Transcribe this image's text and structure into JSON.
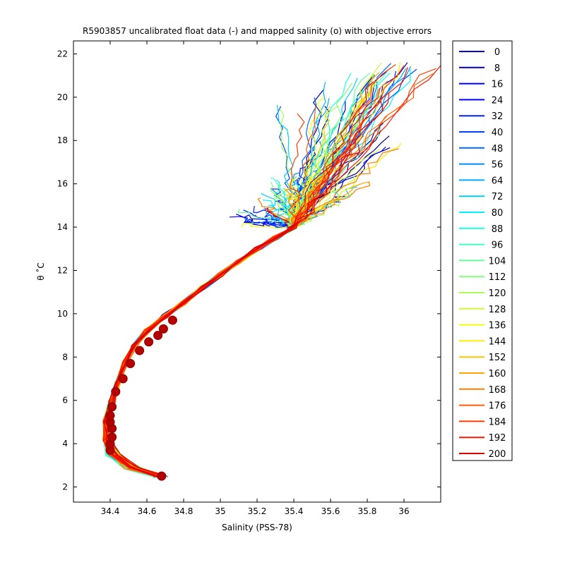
{
  "chart_data": {
    "type": "line",
    "title": "R5903857 uncalibrated float data (-) and mapped salinity (o) with objective errors",
    "xlabel": "Salinity (PSS-78)",
    "ylabel": "θ ˚C",
    "xlim": [
      34.2,
      36.2
    ],
    "ylim": [
      1.3,
      22.6
    ],
    "xticks": [
      34.4,
      34.6,
      34.8,
      35,
      35.2,
      35.4,
      35.6,
      35.8,
      36
    ],
    "yticks": [
      2,
      4,
      6,
      8,
      10,
      12,
      14,
      16,
      18,
      20,
      22
    ],
    "grid": false,
    "legend_position": "right-outside",
    "legend": [
      "0",
      "8",
      "16",
      "24",
      "32",
      "40",
      "48",
      "56",
      "64",
      "72",
      "80",
      "88",
      "96",
      "104",
      "112",
      "120",
      "128",
      "136",
      "144",
      "152",
      "160",
      "168",
      "176",
      "184",
      "192",
      "200"
    ],
    "legend_colors": [
      "#00008f",
      "#0000b4",
      "#0000d9",
      "#0000ff",
      "#0020ff",
      "#0044ff",
      "#0068ff",
      "#008cff",
      "#00acff",
      "#00d0ff",
      "#00f4ff",
      "#1cffe3",
      "#40ffbf",
      "#64ff9b",
      "#84ff7b",
      "#a8ff57",
      "#ccff33",
      "#f0ff0f",
      "#ffec00",
      "#ffc800",
      "#ffa400",
      "#ff8000",
      "#ff5c00",
      "#ff3c00",
      "#ff1800",
      "#d90000"
    ],
    "series_profile": {
      "description_note": "",
      "shared_curve": [
        [
          34.67,
          2.5
        ],
        [
          34.52,
          2.9
        ],
        [
          34.42,
          3.5
        ],
        [
          34.38,
          4.2
        ],
        [
          34.38,
          5.0
        ],
        [
          34.41,
          5.9
        ],
        [
          34.44,
          6.8
        ],
        [
          34.48,
          7.7
        ],
        [
          34.53,
          8.5
        ],
        [
          34.6,
          9.2
        ],
        [
          34.7,
          9.9
        ],
        [
          34.8,
          10.5
        ],
        [
          34.9,
          11.2
        ],
        [
          35.0,
          11.8
        ],
        [
          35.1,
          12.4
        ],
        [
          35.2,
          13.0
        ],
        [
          35.3,
          13.5
        ],
        [
          35.4,
          14.0
        ]
      ],
      "upper_fan": [
        {
          "s": 35.35,
          "t": 19.4
        },
        {
          "s": 35.55,
          "t": 20.3
        },
        {
          "s": 35.62,
          "t": 19.8
        },
        {
          "s": 35.7,
          "t": 20.5
        },
        {
          "s": 35.82,
          "t": 20.7
        },
        {
          "s": 35.88,
          "t": 21.4
        },
        {
          "s": 35.95,
          "t": 21.5
        },
        {
          "s": 36.02,
          "t": 21.6
        },
        {
          "s": 35.85,
          "t": 18.6
        },
        {
          "s": 35.9,
          "t": 17.8
        },
        {
          "s": 35.6,
          "t": 18.2
        },
        {
          "s": 35.45,
          "t": 16.6
        },
        {
          "s": 35.3,
          "t": 15.9
        },
        {
          "s": 35.2,
          "t": 15.3
        },
        {
          "s": 35.1,
          "t": 14.3
        },
        {
          "s": 35.7,
          "t": 16.0
        }
      ]
    },
    "mapped_salinity_points": [
      {
        "s": 34.68,
        "t": 2.5
      },
      {
        "s": 34.4,
        "t": 3.7
      },
      {
        "s": 34.4,
        "t": 4.0
      },
      {
        "s": 34.41,
        "t": 4.3
      },
      {
        "s": 34.41,
        "t": 4.7
      },
      {
        "s": 34.4,
        "t": 5.0
      },
      {
        "s": 34.4,
        "t": 5.3
      },
      {
        "s": 34.41,
        "t": 5.7
      },
      {
        "s": 34.43,
        "t": 6.4
      },
      {
        "s": 34.47,
        "t": 7.0
      },
      {
        "s": 34.51,
        "t": 7.7
      },
      {
        "s": 34.56,
        "t": 8.3
      },
      {
        "s": 34.61,
        "t": 8.7
      },
      {
        "s": 34.66,
        "t": 9.0
      },
      {
        "s": 34.69,
        "t": 9.3
      },
      {
        "s": 34.74,
        "t": 9.7
      }
    ]
  }
}
